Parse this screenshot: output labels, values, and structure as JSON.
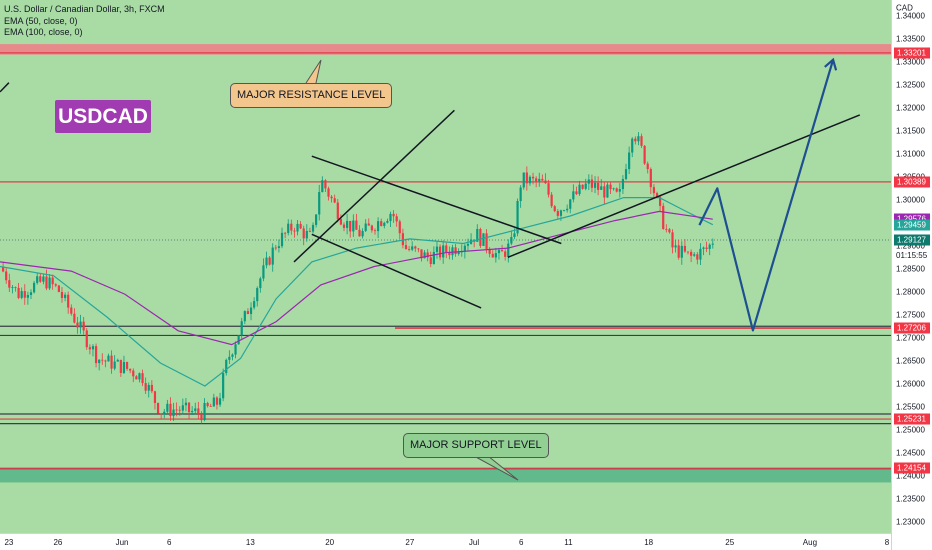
{
  "legend": {
    "symbol": "U.S. Dollar / Canadian Dollar, 3h, FXCM",
    "ema50": "EMA (50, close, 0)",
    "ema100": "EMA (100, close, 0)"
  },
  "ticker_tag": "USDCAD",
  "annotations": {
    "resistance_label": "MAJOR RESISTANCE LEVEL",
    "support_label": "MAJOR SUPPORT LEVEL"
  },
  "axis": {
    "currency": "CAD",
    "countdown": "01:15:55"
  },
  "colors": {
    "up": "#089981",
    "down": "#f23645",
    "ema50": "#26a69a",
    "ema100": "#9c27b0",
    "level": "#e03a4a",
    "chart_bg": "#a9dca4",
    "resistance_zone": "#ee7f8a",
    "support_zone": "#5ab58a",
    "projection": "#1e4f91"
  },
  "chart_data": {
    "type": "candlestick",
    "ylim": [
      1.2275,
      1.3435
    ],
    "y_ticks": [
      1.235,
      1.24,
      1.245,
      1.25,
      1.255,
      1.26,
      1.265,
      1.27,
      1.275,
      1.28,
      1.285,
      1.29,
      1.295,
      1.3,
      1.305,
      1.31,
      1.315,
      1.32,
      1.325,
      1.33,
      1.335,
      1.34
    ],
    "y_tick_labels": [
      "1.23500",
      "1.24000",
      "1.24500",
      "1.25000",
      "1.25500",
      "1.26000",
      "1.26500",
      "1.27000",
      "1.27500",
      "1.28000",
      "1.28500",
      "1.29000",
      "1.29500",
      "1.30000",
      "1.30500",
      "1.31000",
      "1.31500",
      "1.32000",
      "1.32500",
      "1.33000",
      "1.33500",
      "1.34000"
    ],
    "extra_y_tick": {
      "value": 1.23,
      "label": "1.23000"
    },
    "x_ticks": [
      {
        "label": "23",
        "pos": 0.01
      },
      {
        "label": "26",
        "pos": 0.065
      },
      {
        "label": "Jun",
        "pos": 0.137
      },
      {
        "label": "6",
        "pos": 0.19
      },
      {
        "label": "13",
        "pos": 0.281
      },
      {
        "label": "20",
        "pos": 0.37
      },
      {
        "label": "27",
        "pos": 0.46
      },
      {
        "label": "Jul",
        "pos": 0.532
      },
      {
        "label": "6",
        "pos": 0.585
      },
      {
        "label": "11",
        "pos": 0.638
      },
      {
        "label": "18",
        "pos": 0.728
      },
      {
        "label": "25",
        "pos": 0.819
      },
      {
        "label": "Aug",
        "pos": 0.909
      },
      {
        "label": "8",
        "pos": 0.996
      }
    ],
    "price_badges": [
      {
        "label": "1.33201",
        "value": 1.33201,
        "color": "#f23645"
      },
      {
        "label": "1.30389",
        "value": 1.30389,
        "color": "#f23645"
      },
      {
        "label": "1.29576",
        "value": 1.29576,
        "color": "#9c27b0"
      },
      {
        "label": "1.29459",
        "value": 1.29459,
        "color": "#26a69a"
      },
      {
        "label": "1.29127",
        "value": 1.29127,
        "color": "#0e7a6d"
      },
      {
        "label": "1.27206",
        "value": 1.27206,
        "color": "#f23645"
      },
      {
        "label": "1.25231",
        "value": 1.25231,
        "color": "#f23645"
      },
      {
        "label": "1.24154",
        "value": 1.24154,
        "color": "#f23645"
      }
    ],
    "current_price": 1.29127,
    "zones": [
      {
        "name": "resistance",
        "from": 1.3316,
        "to": 1.3339
      },
      {
        "name": "support",
        "from": 1.2385,
        "to": 1.2418
      }
    ],
    "horizontal_levels": [
      1.3039,
      1.2725,
      1.2705,
      1.2534,
      1.2513,
      1.2415
    ],
    "close_path": [
      {
        "t": 0.0,
        "c": 1.2855
      },
      {
        "t": 0.02,
        "c": 1.2795
      },
      {
        "t": 0.05,
        "c": 1.2825
      },
      {
        "t": 0.065,
        "c": 1.2805
      },
      {
        "t": 0.09,
        "c": 1.272
      },
      {
        "t": 0.11,
        "c": 1.2655
      },
      {
        "t": 0.14,
        "c": 1.2635
      },
      {
        "t": 0.16,
        "c": 1.2615
      },
      {
        "t": 0.18,
        "c": 1.254
      },
      {
        "t": 0.2,
        "c": 1.2545
      },
      {
        "t": 0.225,
        "c": 1.2535
      },
      {
        "t": 0.245,
        "c": 1.256
      },
      {
        "t": 0.255,
        "c": 1.265
      },
      {
        "t": 0.275,
        "c": 1.2745
      },
      {
        "t": 0.29,
        "c": 1.282
      },
      {
        "t": 0.31,
        "c": 1.2905
      },
      {
        "t": 0.33,
        "c": 1.2945
      },
      {
        "t": 0.35,
        "c": 1.2915
      },
      {
        "t": 0.36,
        "c": 1.3045
      },
      {
        "t": 0.385,
        "c": 1.2955
      },
      {
        "t": 0.405,
        "c": 1.2925
      },
      {
        "t": 0.44,
        "c": 1.2975
      },
      {
        "t": 0.455,
        "c": 1.2895
      },
      {
        "t": 0.48,
        "c": 1.2875
      },
      {
        "t": 0.51,
        "c": 1.2895
      },
      {
        "t": 0.535,
        "c": 1.2925
      },
      {
        "t": 0.56,
        "c": 1.2875
      },
      {
        "t": 0.575,
        "c": 1.2905
      },
      {
        "t": 0.585,
        "c": 1.3045
      },
      {
        "t": 0.61,
        "c": 1.3035
      },
      {
        "t": 0.625,
        "c": 1.2975
      },
      {
        "t": 0.66,
        "c": 1.3035
      },
      {
        "t": 0.695,
        "c": 1.3005
      },
      {
        "t": 0.71,
        "c": 1.3155
      },
      {
        "t": 0.725,
        "c": 1.3085
      },
      {
        "t": 0.74,
        "c": 1.2975
      },
      {
        "t": 0.755,
        "c": 1.2895
      },
      {
        "t": 0.775,
        "c": 1.2875
      },
      {
        "t": 0.795,
        "c": 1.2895
      },
      {
        "t": 0.8,
        "c": 1.2912
      }
    ],
    "series": [
      {
        "name": "EMA (50, close, 0)",
        "values": [
          {
            "t": 0.0,
            "v": 1.2855
          },
          {
            "t": 0.06,
            "v": 1.2835
          },
          {
            "t": 0.12,
            "v": 1.2745
          },
          {
            "t": 0.18,
            "v": 1.2645
          },
          {
            "t": 0.23,
            "v": 1.2595
          },
          {
            "t": 0.27,
            "v": 1.2655
          },
          {
            "t": 0.31,
            "v": 1.2785
          },
          {
            "t": 0.35,
            "v": 1.2865
          },
          {
            "t": 0.4,
            "v": 1.2895
          },
          {
            "t": 0.46,
            "v": 1.2915
          },
          {
            "t": 0.52,
            "v": 1.2905
          },
          {
            "t": 0.58,
            "v": 1.2935
          },
          {
            "t": 0.64,
            "v": 1.2965
          },
          {
            "t": 0.7,
            "v": 1.3005
          },
          {
            "t": 0.74,
            "v": 1.3005
          },
          {
            "t": 0.77,
            "v": 1.2975
          },
          {
            "t": 0.8,
            "v": 1.2946
          }
        ]
      },
      {
        "name": "EMA (100, close, 0)",
        "values": [
          {
            "t": 0.0,
            "v": 1.2865
          },
          {
            "t": 0.08,
            "v": 1.2845
          },
          {
            "t": 0.14,
            "v": 1.2795
          },
          {
            "t": 0.2,
            "v": 1.2715
          },
          {
            "t": 0.26,
            "v": 1.2685
          },
          {
            "t": 0.31,
            "v": 1.2735
          },
          {
            "t": 0.36,
            "v": 1.2815
          },
          {
            "t": 0.42,
            "v": 1.2855
          },
          {
            "t": 0.5,
            "v": 1.2885
          },
          {
            "t": 0.57,
            "v": 1.2895
          },
          {
            "t": 0.63,
            "v": 1.2925
          },
          {
            "t": 0.69,
            "v": 1.2955
          },
          {
            "t": 0.74,
            "v": 1.2975
          },
          {
            "t": 0.8,
            "v": 1.2958
          }
        ]
      }
    ],
    "drawings": {
      "channel_upper": [
        [
          0.35,
          1.3095
        ],
        [
          0.63,
          1.2905
        ]
      ],
      "channel_lower": [
        [
          0.35,
          1.2925
        ],
        [
          0.54,
          1.2765
        ]
      ],
      "rising_line_left": [
        [
          0.33,
          1.2865
        ],
        [
          0.51,
          1.3195
        ]
      ],
      "trendline_right": [
        [
          0.57,
          1.2875
        ],
        [
          0.965,
          1.3185
        ]
      ],
      "projection": [
        [
          0.785,
          1.2945
        ],
        [
          0.805,
          1.3025
        ],
        [
          0.845,
          1.2716
        ],
        [
          0.935,
          1.3305
        ]
      ],
      "top_left_stub": [
        [
          0.0,
          1.3235
        ],
        [
          0.01,
          1.3255
        ]
      ]
    }
  }
}
